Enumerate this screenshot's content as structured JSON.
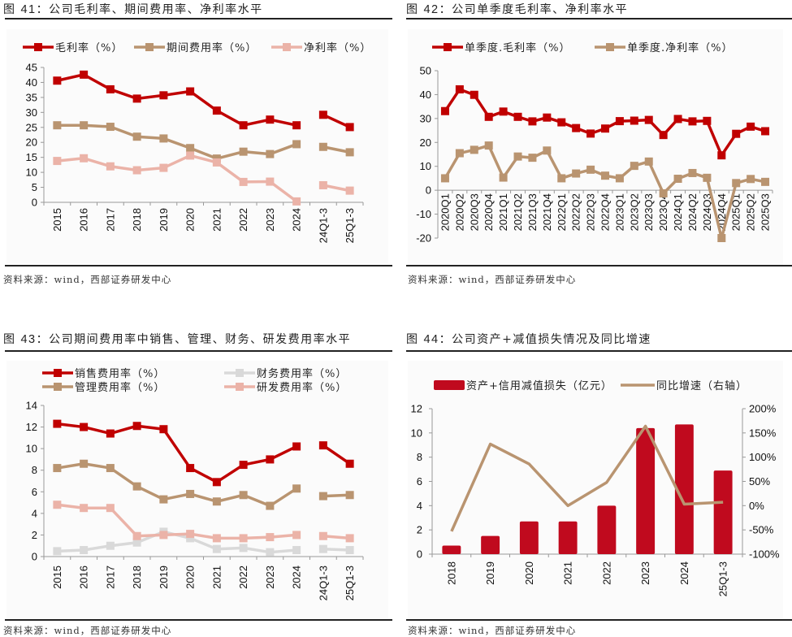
{
  "figures": [
    {
      "id": "fig41",
      "title_prefix": "图 ",
      "number": "41",
      "title_text": "：公司毛利率、期间费用率、净利率水平",
      "source": "资料来源：wind，西部证券研发中心"
    },
    {
      "id": "fig42",
      "title_prefix": "图 ",
      "number": "42",
      "title_text": "：公司单季度毛利率、净利率水平",
      "source": "资料来源：wind，西部证券研发中心"
    },
    {
      "id": "fig43",
      "title_prefix": "图 ",
      "number": "43",
      "title_text": "：公司期间费用率中销售、管理、财务、研发费用率水平",
      "source": "资料来源：wind，西部证券研发中心"
    },
    {
      "id": "fig44",
      "title_prefix": "图 ",
      "number": "44",
      "title_text": "：公司资产+减值损失情况及同比增速",
      "source": "资料来源：wind，西部证券研发中心"
    }
  ],
  "chart_data": [
    {
      "type": "line",
      "title": "公司毛利率、期间费用率、净利率水平",
      "xlabel": "",
      "ylabel": "",
      "categories": [
        "2015",
        "2016",
        "2017",
        "2018",
        "2019",
        "2020",
        "2021",
        "2022",
        "2023",
        "2024",
        "24Q1-3",
        "25Q1-3"
      ],
      "gap_after_index": 9,
      "ylim": [
        0,
        45
      ],
      "yticks": [
        0,
        5,
        10,
        15,
        20,
        25,
        30,
        35,
        40,
        45
      ],
      "legend_position": "top",
      "series": [
        {
          "name": "毛利率（%）",
          "color": "#c00000",
          "values": [
            40.6,
            42.6,
            37.7,
            34.6,
            35.7,
            37.0,
            30.6,
            25.7,
            27.6,
            25.7,
            29.2,
            25.1
          ]
        },
        {
          "name": "期间费用率（%）",
          "color": "#b99470",
          "values": [
            25.7,
            25.7,
            25.2,
            21.9,
            21.3,
            18.1,
            14.6,
            16.9,
            16.1,
            19.4,
            18.5,
            16.7
          ]
        },
        {
          "name": "净利率（%）",
          "color": "#ebb3a8",
          "values": [
            13.8,
            14.7,
            12.0,
            10.7,
            11.5,
            15.6,
            13.3,
            6.8,
            6.9,
            0.3,
            5.7,
            3.9
          ]
        }
      ]
    },
    {
      "type": "line",
      "title": "公司单季度毛利率、净利率水平",
      "xlabel": "",
      "ylabel": "",
      "categories": [
        "2020Q1",
        "2020Q2",
        "2020Q3",
        "2020Q4",
        "2021Q1",
        "2021Q2",
        "2021Q3",
        "2021Q4",
        "2022Q1",
        "2022Q2",
        "2022Q3",
        "2022Q4",
        "2023Q1",
        "2023Q2",
        "2023Q3",
        "2023Q4",
        "2024Q1",
        "2024Q2",
        "2024Q3",
        "2024Q4",
        "2025Q1",
        "2025Q2",
        "2025Q3"
      ],
      "ylim": [
        -20,
        50
      ],
      "yticks": [
        -20,
        -10,
        0,
        10,
        20,
        30,
        40,
        50
      ],
      "legend_position": "top",
      "series": [
        {
          "name": "单季度.毛利率（%）",
          "color": "#c00000",
          "values": [
            33.1,
            42.2,
            39.9,
            30.7,
            32.9,
            30.7,
            28.8,
            30.4,
            28.4,
            26.0,
            23.7,
            25.8,
            28.9,
            29.1,
            29.4,
            23.1,
            29.8,
            28.8,
            29.0,
            14.6,
            23.6,
            26.6,
            24.7
          ]
        },
        {
          "name": "单季度.净利率（%）",
          "color": "#b99470",
          "values": [
            5.0,
            15.5,
            16.9,
            18.7,
            5.3,
            14.1,
            13.6,
            16.6,
            5.0,
            7.0,
            8.6,
            6.1,
            5.0,
            10.2,
            12.0,
            -1.3,
            4.8,
            7.2,
            5.2,
            -20.0,
            3.0,
            4.7,
            3.5
          ]
        }
      ]
    },
    {
      "type": "line",
      "title": "公司期间费用率中销售、管理、财务、研发费用率水平",
      "xlabel": "",
      "ylabel": "",
      "categories": [
        "2015",
        "2016",
        "2017",
        "2018",
        "2019",
        "2020",
        "2021",
        "2022",
        "2023",
        "2024",
        "24Q1-3",
        "25Q1-3"
      ],
      "gap_after_index": 9,
      "ylim": [
        0,
        14
      ],
      "yticks": [
        0,
        2,
        4,
        6,
        8,
        10,
        12,
        14
      ],
      "legend_position": "top",
      "series": [
        {
          "name": "销售费用率（%）",
          "color": "#c00000",
          "values": [
            12.3,
            12.0,
            11.4,
            12.1,
            11.8,
            8.2,
            6.9,
            8.5,
            9.0,
            10.2,
            10.3,
            8.6
          ]
        },
        {
          "name": "管理费用率（%）",
          "color": "#b99470",
          "values": [
            8.2,
            8.6,
            8.2,
            6.5,
            5.3,
            5.8,
            5.1,
            5.7,
            4.7,
            6.3,
            5.6,
            5.7
          ]
        },
        {
          "name": "财务费用率（%）",
          "color": "#d9d9d9",
          "values": [
            0.5,
            0.6,
            1.0,
            1.3,
            2.3,
            1.7,
            0.7,
            0.8,
            0.4,
            0.6,
            0.7,
            0.6
          ]
        },
        {
          "name": "研发费用率（%）",
          "color": "#ebb3a8",
          "values": [
            4.8,
            4.5,
            4.5,
            1.9,
            2.0,
            2.1,
            1.7,
            1.7,
            1.8,
            2.0,
            1.9,
            1.7
          ]
        }
      ]
    },
    {
      "type": "bar",
      "title": "公司资产+减值损失情况及同比增速",
      "xlabel": "",
      "ylabel": "",
      "categories": [
        "2018",
        "2019",
        "2020",
        "2021",
        "2022",
        "2023",
        "2024",
        "25Q1-3"
      ],
      "ylim": [
        0,
        12
      ],
      "yticks": [
        0,
        2,
        4,
        6,
        8,
        10,
        12
      ],
      "y2lim": [
        -100,
        200
      ],
      "y2ticks": [
        "-100%",
        "-50%",
        "0%",
        "50%",
        "100%",
        "150%",
        "200%"
      ],
      "y2tick_values": [
        -100,
        -50,
        0,
        50,
        100,
        150,
        200
      ],
      "legend_position": "top",
      "series": [
        {
          "name": "资产+信用减值损失（亿元）",
          "kind": "bar",
          "axis": "left",
          "color": "#c00a1e",
          "values": [
            0.7,
            1.5,
            2.7,
            2.7,
            4.0,
            10.4,
            10.7,
            6.9
          ]
        },
        {
          "name": "同比增速（右轴）",
          "kind": "line",
          "axis": "right",
          "color": "#b99470",
          "values": [
            -53,
            127,
            86,
            0,
            48,
            164,
            3,
            7
          ]
        }
      ]
    }
  ]
}
